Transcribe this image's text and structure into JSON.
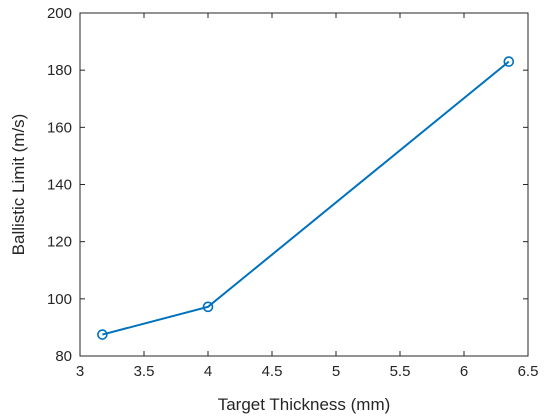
{
  "chart_data": {
    "type": "line",
    "title": "",
    "xlabel": "Target Thickness (mm)",
    "ylabel": "Ballistic Limit (m/s)",
    "xlim": [
      3,
      6.5
    ],
    "ylim": [
      80,
      200
    ],
    "xticks": [
      3,
      3.5,
      4,
      4.5,
      5,
      5.5,
      6,
      6.5
    ],
    "xtick_labels": [
      "3",
      "3.5",
      "4",
      "4.5",
      "5",
      "5.5",
      "6",
      "6.5"
    ],
    "yticks": [
      80,
      100,
      120,
      140,
      160,
      180,
      200
    ],
    "ytick_labels": [
      "80",
      "100",
      "120",
      "140",
      "160",
      "180",
      "200"
    ],
    "grid": false,
    "legend": "none",
    "series": [
      {
        "x": [
          3.175,
          4.0,
          6.35
        ],
        "y": [
          87.5,
          97.2,
          183.0
        ],
        "color": "#0072BD",
        "marker": "circle"
      }
    ]
  }
}
